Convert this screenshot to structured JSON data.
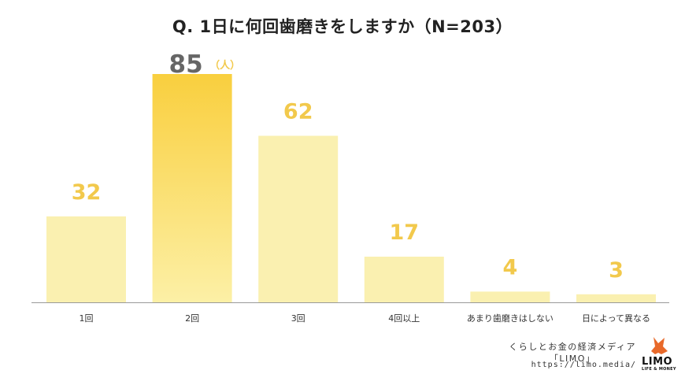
{
  "chart_data": {
    "type": "bar",
    "title": "Q. 1日に何回歯磨きをしますか（N=203）",
    "categories": [
      "1回",
      "2回",
      "3回",
      "4回以上",
      "あまり歯磨きはしない",
      "日によって異なる"
    ],
    "values": [
      32,
      85,
      62,
      17,
      4,
      3
    ],
    "unit_label": "（人）",
    "highlight_index": 1,
    "ylim": [
      0,
      85
    ],
    "grid": false,
    "colors": {
      "bar": "#faf0b0",
      "highlight_top": "#f9cf3e",
      "highlight_bottom": "#fcf0a6",
      "value_label": "#f2c94c",
      "highlight_value_label": "#666666",
      "axis": "#999999",
      "category_label": "#333333"
    }
  },
  "footer": {
    "line1": "くらしとお金の経済メディア",
    "line2": "「LIMO」",
    "url": "https://limo.media/"
  },
  "logo": {
    "icon": "fox-icon",
    "word": "LIMO",
    "sub": "LIFE & MONEY",
    "color": "#e8692a"
  }
}
